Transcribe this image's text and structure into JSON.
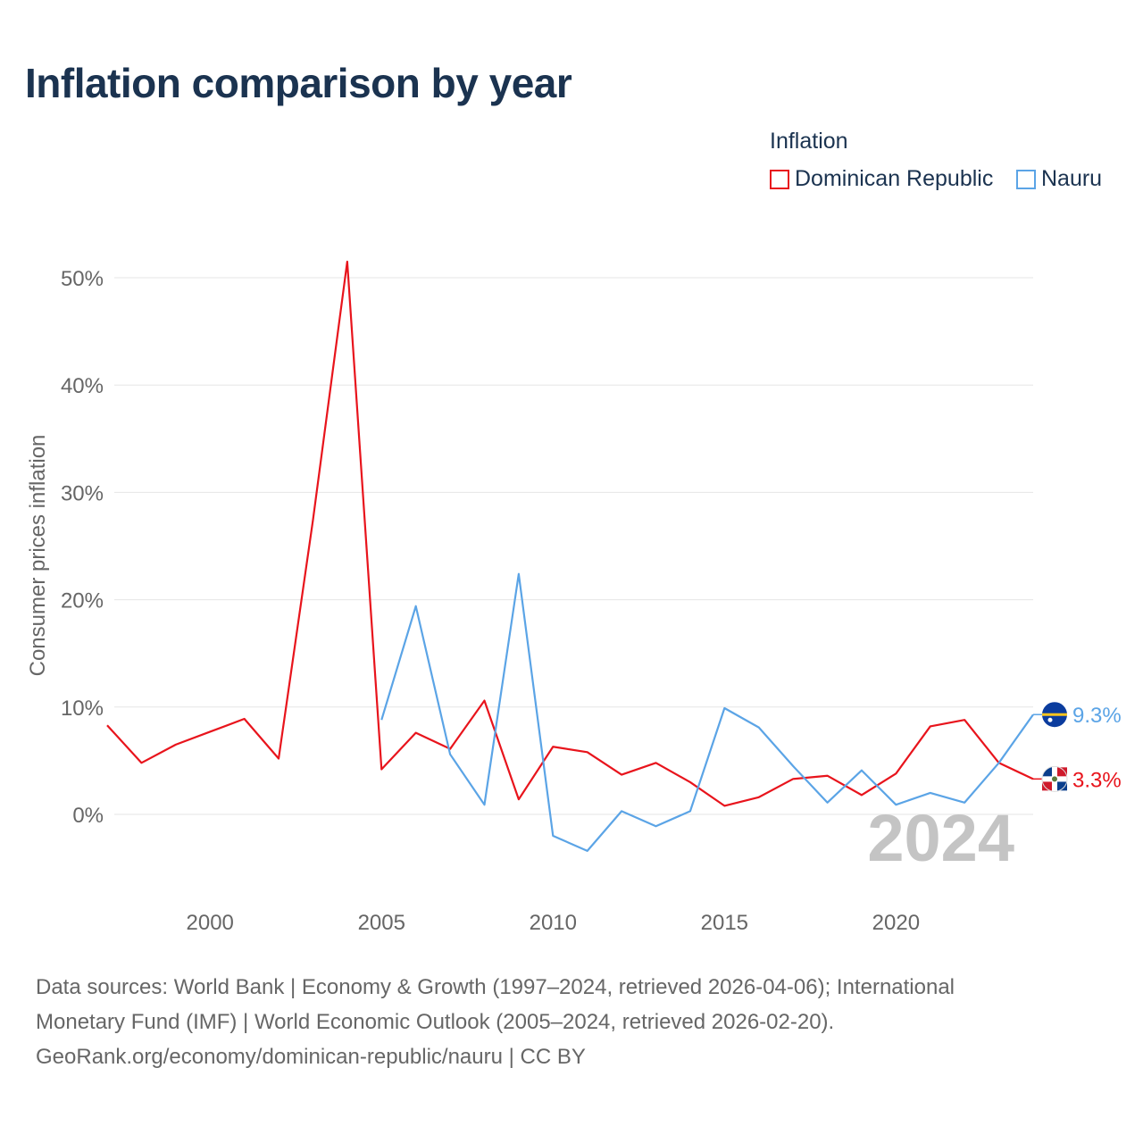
{
  "title": "Inflation comparison by year",
  "legend": {
    "title": "Inflation",
    "items": [
      {
        "label": "Dominican Republic",
        "color": "#e8141c"
      },
      {
        "label": "Nauru",
        "color": "#5ba4e6"
      }
    ]
  },
  "year_watermark": "2024",
  "source": {
    "line1": "Data sources: World Bank | Economy & Growth (1997–2024, retrieved 2026-04-06); International",
    "line2": "Monetary Fund (IMF) | World Economic Outlook (2005–2024, retrieved 2026-02-20).",
    "line3": "GeoRank.org/economy/dominican-republic/nauru | CC BY"
  },
  "chart_data": {
    "type": "line",
    "title": "Inflation comparison by year",
    "xlabel": "",
    "ylabel": "Consumer prices inflation",
    "xlim": [
      1997,
      2024
    ],
    "ylim": [
      -5,
      52
    ],
    "x_ticks": [
      2000,
      2005,
      2010,
      2015,
      2020
    ],
    "y_ticks": [
      0,
      10,
      20,
      30,
      40,
      50
    ],
    "y_tick_labels": [
      "0%",
      "10%",
      "20%",
      "30%",
      "40%",
      "50%"
    ],
    "grid": true,
    "legend_position": "top-right",
    "series": [
      {
        "name": "Dominican Republic",
        "color": "#e8141c",
        "end_label": "3.3%",
        "flag": "dominican-republic-flag",
        "x": [
          1997,
          1998,
          1999,
          2000,
          2001,
          2002,
          2003,
          2004,
          2005,
          2006,
          2007,
          2008,
          2009,
          2010,
          2011,
          2012,
          2013,
          2014,
          2015,
          2016,
          2017,
          2018,
          2019,
          2020,
          2021,
          2022,
          2023,
          2024
        ],
        "values": [
          8.3,
          4.8,
          6.5,
          7.7,
          8.9,
          5.2,
          27.4,
          51.5,
          4.2,
          7.6,
          6.1,
          10.6,
          1.4,
          6.3,
          5.8,
          3.7,
          4.8,
          3.0,
          0.8,
          1.6,
          3.3,
          3.6,
          1.8,
          3.8,
          8.2,
          8.8,
          4.8,
          3.3
        ]
      },
      {
        "name": "Nauru",
        "color": "#5ba4e6",
        "end_label": "9.3%",
        "flag": "nauru-flag",
        "x": [
          2005,
          2006,
          2007,
          2008,
          2009,
          2010,
          2011,
          2012,
          2013,
          2014,
          2015,
          2016,
          2017,
          2018,
          2019,
          2020,
          2021,
          2022,
          2023,
          2024
        ],
        "values": [
          8.8,
          19.4,
          5.6,
          0.9,
          22.4,
          -2.0,
          -3.4,
          0.3,
          -1.1,
          0.3,
          9.9,
          8.1,
          4.5,
          1.1,
          4.1,
          0.9,
          2.0,
          1.1,
          4.8,
          9.3
        ]
      }
    ]
  }
}
